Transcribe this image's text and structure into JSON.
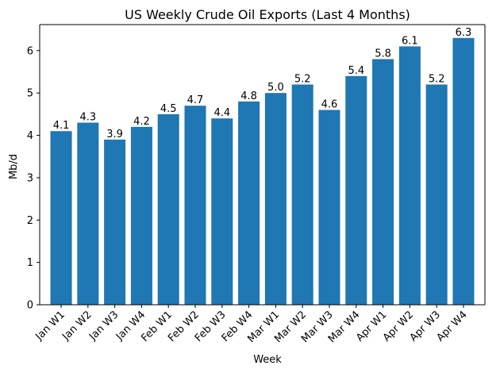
{
  "chart_data": {
    "type": "bar",
    "title": "US Weekly Crude Oil Exports (Last 4 Months)",
    "xlabel": "Week",
    "ylabel": "Mb/d",
    "categories": [
      "Jan W1",
      "Jan W2",
      "Jan W3",
      "Jan W4",
      "Feb W1",
      "Feb W2",
      "Feb W3",
      "Feb W4",
      "Mar W1",
      "Mar W2",
      "Mar W3",
      "Mar W4",
      "Apr W1",
      "Apr W2",
      "Apr W3",
      "Apr W4"
    ],
    "values": [
      4.1,
      4.3,
      3.9,
      4.2,
      4.5,
      4.7,
      4.4,
      4.8,
      5.0,
      5.2,
      4.6,
      5.4,
      5.8,
      6.1,
      5.2,
      6.3
    ],
    "data_labels": [
      "4.1",
      "4.3",
      "3.9",
      "4.2",
      "4.5",
      "4.7",
      "4.4",
      "4.8",
      "5.0",
      "5.2",
      "4.6",
      "5.4",
      "5.8",
      "6.1",
      "5.2",
      "6.3"
    ],
    "ylim": [
      0,
      6.615
    ],
    "yticks": [
      0,
      1,
      2,
      3,
      4,
      5,
      6
    ],
    "grid": false,
    "bar_color": "#1f77b4"
  }
}
